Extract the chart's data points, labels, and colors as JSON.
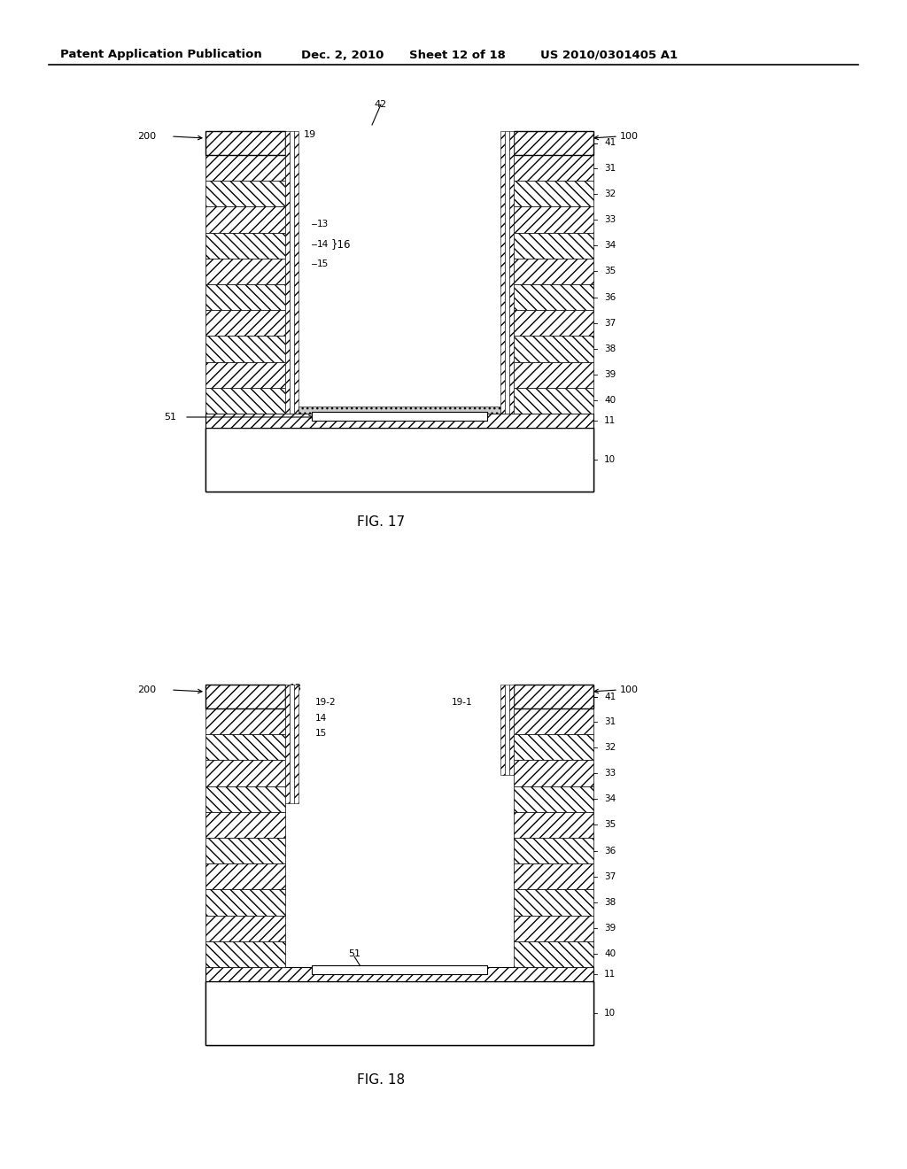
{
  "bg_color": "#ffffff",
  "header_text": "Patent Application Publication",
  "header_date": "Dec. 2, 2010",
  "header_sheet": "Sheet 12 of 18",
  "header_patent": "US 2010/0301405 A1",
  "fig17_label": "FIG. 17",
  "fig18_label": "FIG. 18"
}
